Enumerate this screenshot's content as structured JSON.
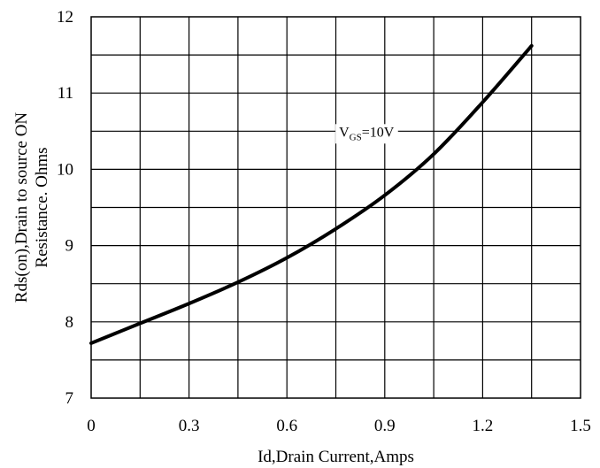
{
  "chart_data": {
    "type": "line",
    "title": "",
    "xlabel": "Id,Drain Current,Amps",
    "ylabel_lines": [
      "Rds(on),Drain to source ON",
      "Resistance. Ohms"
    ],
    "xlim": [
      0,
      1.5
    ],
    "ylim": [
      7,
      12
    ],
    "x_ticks": [
      0,
      0.3,
      0.6,
      0.9,
      1.2,
      1.5
    ],
    "x_tick_labels": [
      "0",
      "0.3",
      "0.6",
      "0.9",
      "1.2",
      "1.5"
    ],
    "y_ticks": [
      7,
      8,
      9,
      10,
      11,
      12
    ],
    "y_tick_labels": [
      "7",
      "8",
      "9",
      "10",
      "11",
      "12"
    ],
    "grid": true,
    "series": [
      {
        "x": [
          0,
          0.15,
          0.3,
          0.45,
          0.6,
          0.75,
          0.9,
          1.05,
          1.2,
          1.35
        ],
        "values": [
          7.72,
          7.98,
          8.24,
          8.52,
          8.84,
          9.22,
          9.66,
          10.2,
          10.88,
          11.62
        ],
        "color": "#000000"
      }
    ],
    "annotation": {
      "main": "V",
      "sub": "GS",
      "rest": "=10V",
      "x": 1.05,
      "y": 10.5
    }
  }
}
